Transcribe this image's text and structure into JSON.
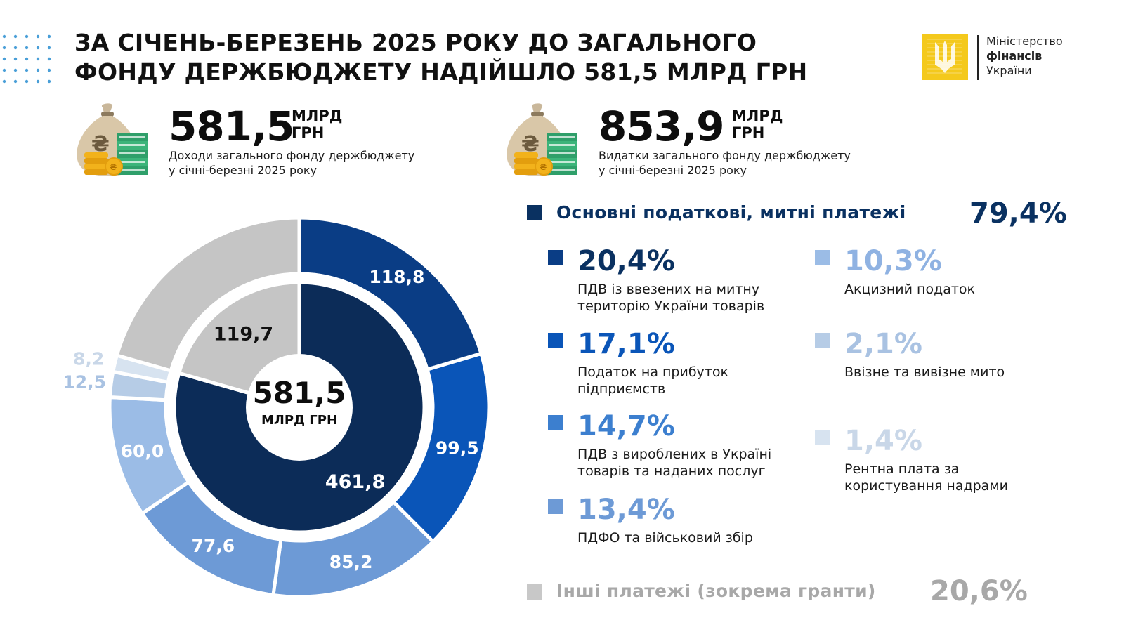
{
  "title": {
    "line1": "ЗА СІЧЕНЬ-БЕРЕЗЕНЬ 2025 РОКУ ДО ЗАГАЛЬНОГО",
    "line2": "ФОНДУ ДЕРЖБЮДЖЕТУ НАДІЙШЛО 581,5 МЛРД ГРН"
  },
  "logo": {
    "line1": "Міністерство",
    "line2": "фінансів",
    "line3": "України",
    "color": "#f4c91c"
  },
  "kpis": [
    {
      "value": "581,5",
      "unit_line1": "МЛРД",
      "unit_line2": "ГРН",
      "desc_line1": "Доходи загального фонду держбюджету",
      "desc_line2": "у січні-березні 2025 року",
      "icon": "money-bag-icon"
    },
    {
      "value": "853,9",
      "unit_line1": "МЛРД",
      "unit_line2": "ГРН",
      "desc_line1": "Видатки загального фонду держбюджету",
      "desc_line2": "у січні-березні 2025 року",
      "icon": "money-bag-icon"
    }
  ],
  "legend": {
    "main": {
      "label": "Основні податкові, митні платежі",
      "pct": "79,4%",
      "color": "#0a3161"
    },
    "other": {
      "label": "Інші платежі (зокрема гранти)",
      "pct": "20,6%",
      "color": "#c8c8c8"
    },
    "items": [
      {
        "pct": "20,4%",
        "line1": "ПДВ із ввезених на митну",
        "line2": "територію України товарів",
        "color": "#0a3d85",
        "text_color": "#0a3161"
      },
      {
        "pct": "17,1%",
        "line1": "Податок на прибуток",
        "line2": "підприємств",
        "color": "#0a55b8",
        "text_color": "#0a55b8"
      },
      {
        "pct": "14,7%",
        "line1": "ПДВ з вироблених в Україні",
        "line2": "товарів та наданих послуг",
        "color": "#3c7fcf",
        "text_color": "#3c7fcf"
      },
      {
        "pct": "13,4%",
        "line1": "ПДФО та військовий збір",
        "line2": "",
        "color": "#6d9ad6",
        "text_color": "#6d9ad6"
      },
      {
        "pct": "10,3%",
        "line1": "Акцизний податок",
        "line2": "",
        "color": "#9bbce6",
        "text_color": "#8fb2e2"
      },
      {
        "pct": "2,1%",
        "line1": "Ввізне та вивізне мито",
        "line2": "",
        "color": "#b6cce6",
        "text_color": "#a9c2e2"
      },
      {
        "pct": "1,4%",
        "line1": "Рентна плата за",
        "line2": "користування надрами",
        "color": "#d7e3f0",
        "text_color": "#c9d7e8"
      }
    ]
  },
  "chart_data": {
    "type": "pie",
    "center_value": "581,5",
    "center_unit": "МЛРД ГРН",
    "inner_ring": [
      {
        "label": "461,8",
        "value": 461.8,
        "color": "#0c2c58"
      },
      {
        "label": "119,7",
        "value": 119.7,
        "color": "#c5c5c5"
      }
    ],
    "outer_ring": [
      {
        "label": "118,8",
        "value": 118.8,
        "color": "#0a3d85",
        "label_color": "#ffffff"
      },
      {
        "label": "99,5",
        "value": 99.5,
        "color": "#0a55b8",
        "label_color": "#ffffff"
      },
      {
        "label": "85,2",
        "value": 85.2,
        "color": "#6d9ad6",
        "label_color": "#ffffff"
      },
      {
        "label": "77,6",
        "value": 77.6,
        "color": "#6d9ad6",
        "label_color": "#ffffff"
      },
      {
        "label": "60,0",
        "value": 60.0,
        "color": "#9bbce6",
        "label_color": "#ffffff"
      },
      {
        "label": "12,5",
        "value": 12.5,
        "color": "#b6cce6",
        "label_color": "#a9c2e2",
        "outside": true
      },
      {
        "label": "8,2",
        "value": 8.2,
        "color": "#d7e3f0",
        "label_color": "#c9d7e8",
        "outside": true
      },
      {
        "label": "",
        "value": 119.7,
        "color": "#c5c5c5",
        "label_color": "#ffffff"
      }
    ]
  }
}
